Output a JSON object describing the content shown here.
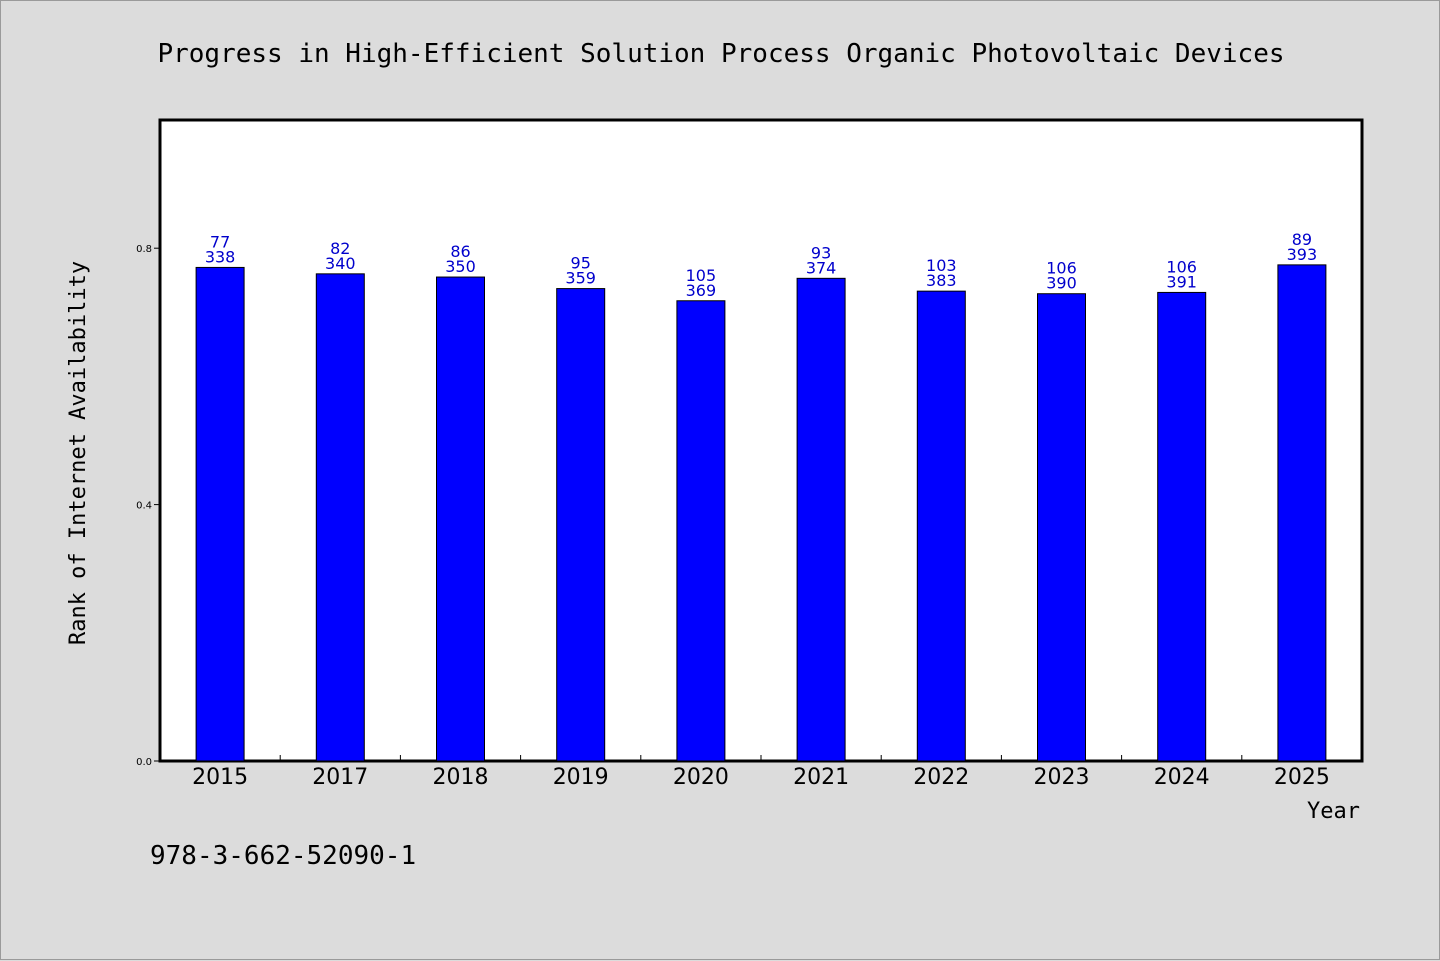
{
  "chart_data": {
    "type": "bar",
    "title": "Progress in High-Efficient Solution Process Organic Photovoltaic Devices",
    "xlabel": "Year",
    "ylabel": "Rank of Internet Availability",
    "footnote": "978-3-662-52090-1",
    "categories": [
      "2015",
      "2017",
      "2018",
      "2019",
      "2020",
      "2021",
      "2022",
      "2023",
      "2024",
      "2025"
    ],
    "values": [
      0.77,
      0.76,
      0.755,
      0.737,
      0.718,
      0.753,
      0.733,
      0.729,
      0.731,
      0.774
    ],
    "labels_top": [
      "77",
      "82",
      "86",
      "95",
      "105",
      "93",
      "103",
      "106",
      "106",
      "89"
    ],
    "labels_bottom": [
      "338",
      "340",
      "350",
      "359",
      "369",
      "374",
      "383",
      "390",
      "391",
      "393"
    ],
    "yticks": [
      0.0,
      0.4,
      0.8
    ],
    "ytick_labels": [
      "0.0",
      "0.4",
      "0.8"
    ],
    "ylim": [
      0,
      1.0
    ],
    "grid": false,
    "colors": {
      "bar": "#0000ff",
      "label": "#0000cc",
      "plot_bg": "#ffffff",
      "page_bg": "#dcdcdc"
    }
  }
}
